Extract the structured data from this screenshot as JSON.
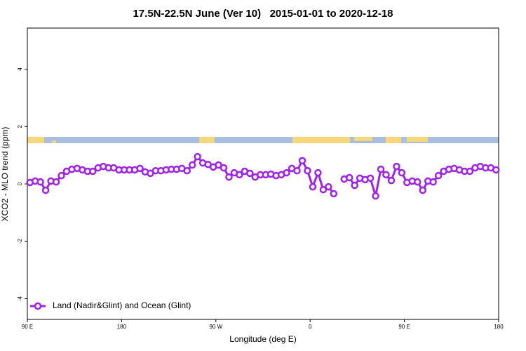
{
  "chart_data": {
    "type": "line",
    "title": "17.5N-22.5N June (Ver 10)   2015-01-01 to 2020-12-18",
    "x_label": "Longitude (deg E)",
    "y_label": "XCO2 - MLO trend (ppm)",
    "x": [
      92.5,
      97.5,
      102.5,
      107.5,
      112.5,
      117.5,
      122.5,
      127.5,
      132.5,
      137.5,
      142.5,
      147.5,
      152.5,
      157.5,
      162.5,
      167.5,
      172.5,
      177.5,
      182.5,
      187.5,
      192.5,
      197.5,
      202.5,
      207.5,
      212.5,
      217.5,
      222.5,
      227.5,
      232.5,
      237.5,
      242.5,
      247.5,
      252.5,
      257.5,
      262.5,
      267.5,
      272.5,
      277.5,
      282.5,
      287.5,
      292.5,
      297.5,
      302.5,
      307.5,
      312.5,
      317.5,
      322.5,
      327.5,
      332.5,
      337.5,
      342.5,
      347.5,
      352.5,
      357.5,
      362.5,
      367.5,
      372.5,
      377.5,
      382.5,
      387.5,
      392.5,
      397.5,
      402.5,
      407.5,
      412.5,
      417.5,
      422.5,
      427.5,
      432.5,
      437.5,
      442.5,
      447.5,
      452.5,
      457.5,
      462.5,
      467.5,
      472.5,
      477.5,
      482.5,
      487.5,
      492.5,
      497.5,
      502.5,
      507.5,
      512.5,
      517.5,
      522.5,
      527.5,
      532.5,
      537.5
    ],
    "series": [
      {
        "name": "Land (Nadir&Glint) and Ocean (Glint)",
        "color": "#a020f0",
        "values": [
          0.05,
          0.1,
          0.07,
          -0.22,
          0.1,
          0.07,
          0.29,
          0.44,
          0.51,
          0.54,
          0.49,
          0.44,
          0.44,
          0.56,
          0.61,
          0.56,
          0.56,
          0.49,
          0.49,
          0.49,
          0.49,
          0.54,
          0.42,
          0.37,
          0.46,
          0.46,
          0.49,
          0.51,
          0.51,
          0.54,
          0.46,
          0.66,
          0.95,
          0.73,
          0.68,
          0.59,
          0.66,
          0.56,
          0.24,
          0.39,
          0.32,
          0.44,
          0.37,
          0.24,
          0.32,
          0.32,
          0.34,
          0.29,
          0.32,
          0.39,
          0.54,
          0.46,
          0.81,
          0.46,
          -0.1,
          0.39,
          -0.2,
          -0.1,
          -0.34,
          null,
          0.17,
          0.22,
          -0.05,
          0.2,
          0.15,
          0.2,
          -0.42,
          0.51,
          0.32,
          0.12,
          0.61,
          0.39,
          0.05,
          0.1,
          0.07,
          -0.22,
          0.1,
          0.07,
          0.29,
          0.44,
          0.51,
          0.54,
          0.49,
          0.44,
          0.44,
          0.56,
          0.61,
          0.56,
          0.56,
          0.49
        ]
      }
    ],
    "xlim": [
      90,
      540
    ],
    "xticks": [
      {
        "value": 90,
        "label": "90 E"
      },
      180,
      {
        "value": 270,
        "label": "90 W"
      },
      {
        "value": 360,
        "label": "0"
      },
      {
        "value": 450,
        "label": "90 E"
      },
      {
        "value": 540,
        "label": "180"
      }
    ],
    "ylim": [
      -4.72,
      5.43
    ],
    "yticks": [
      -4,
      -2,
      0,
      2,
      4
    ],
    "legend": "bottom-left"
  }
}
